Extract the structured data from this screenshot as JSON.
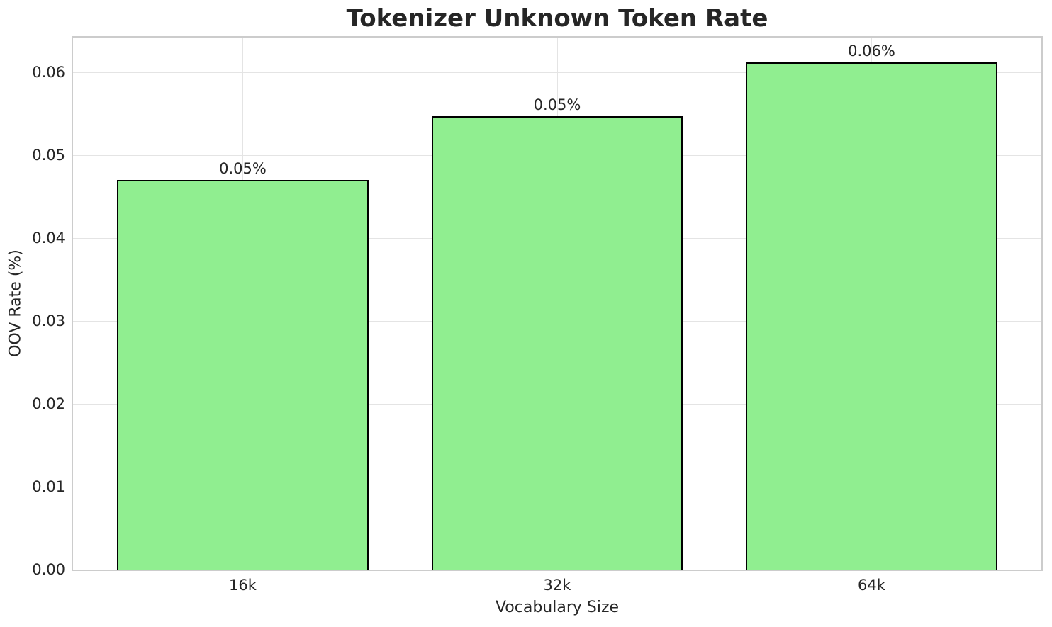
{
  "chart_data": {
    "type": "bar",
    "title": "Tokenizer Unknown Token Rate",
    "xlabel": "Vocabulary Size",
    "ylabel": "OOV Rate (%)",
    "categories": [
      "16k",
      "32k",
      "64k"
    ],
    "values": [
      0.047,
      0.0547,
      0.0612
    ],
    "bar_labels": [
      "0.05%",
      "0.05%",
      "0.06%"
    ],
    "yticks": [
      "0.00",
      "0.01",
      "0.02",
      "0.03",
      "0.04",
      "0.05",
      "0.06"
    ],
    "ytick_values": [
      0,
      0.01,
      0.02,
      0.03,
      0.04,
      0.05,
      0.06
    ],
    "ylim": [
      0,
      0.0642
    ],
    "grid": true,
    "legend": null,
    "colors": {
      "bar_fill": "#90EE90",
      "bar_edge": "#000000",
      "grid": "#e4e4e4",
      "spine": "#cccccc",
      "text": "#262626",
      "background": "#ffffff"
    }
  }
}
